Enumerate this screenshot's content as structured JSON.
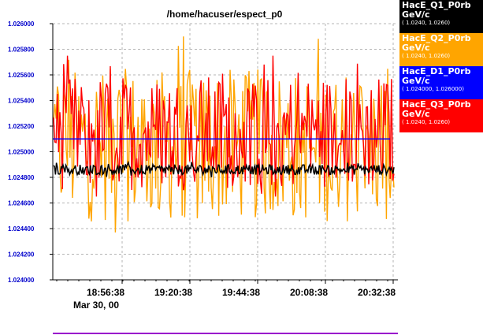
{
  "window": {
    "title": "/home/hacuser/espect_p0"
  },
  "colors": {
    "background": "#ffffff",
    "axis": "#000000",
    "ytick_text": "#0000cc",
    "grid": "#b4b4b4",
    "bottom_line": "#9900cc"
  },
  "legend": [
    {
      "name": "HacE_Q1_P0rb",
      "unit": "GeV/c",
      "range": "( 1.0240, 1.0260)",
      "bg": "#000000",
      "fg": "#ffffff"
    },
    {
      "name": "HacE_Q2_P0rb",
      "unit": "GeV/c",
      "range": "( 1.0240, 1.0260)",
      "bg": "#ffa500",
      "fg": "#ffffff"
    },
    {
      "name": "HacE_D1_P0rb",
      "unit": "GeV/c",
      "range": "( 1.024000, 1.026000)",
      "bg": "#0000ff",
      "fg": "#ffffff"
    },
    {
      "name": "HacE_Q3_P0rb",
      "unit": "GeV/c",
      "range": "( 1.0240, 1.0260)",
      "bg": "#ff0000",
      "fg": "#ffffff"
    }
  ],
  "chart_data": {
    "type": "line",
    "title": "/home/hacuser/espect_p0",
    "ylim": [
      1.024,
      1.026
    ],
    "yticks": [
      "1.024000",
      "1.024200",
      "1.024400",
      "1.024600",
      "1.024800",
      "1.025000",
      "1.025200",
      "1.025400",
      "1.025600",
      "1.025800",
      "1.026000"
    ],
    "xticks": [
      "18:56:38",
      "19:20:38",
      "19:44:38",
      "20:08:38",
      "20:32:38"
    ],
    "date_label": "Mar 30, 00",
    "grid": true,
    "series": [
      {
        "name": "HacE_Q2_P0rb",
        "color": "#ffa500",
        "kind": "noise",
        "center": 1.02505,
        "spread": 0.0006,
        "min": 1.02437,
        "max": 1.0259
      },
      {
        "name": "HacE_Q3_P0rb",
        "color": "#ff0000",
        "kind": "noise",
        "center": 1.02515,
        "spread": 0.00045,
        "min": 1.02465,
        "max": 1.02575
      },
      {
        "name": "HacE_Q1_P0rb",
        "color": "#000000",
        "kind": "noise",
        "center": 1.02486,
        "spread": 4e-05,
        "min": 1.02476,
        "max": 1.02496
      },
      {
        "name": "HacE_D1_P0rb",
        "color": "#0000ff",
        "kind": "flat",
        "value": 1.0251
      }
    ]
  }
}
